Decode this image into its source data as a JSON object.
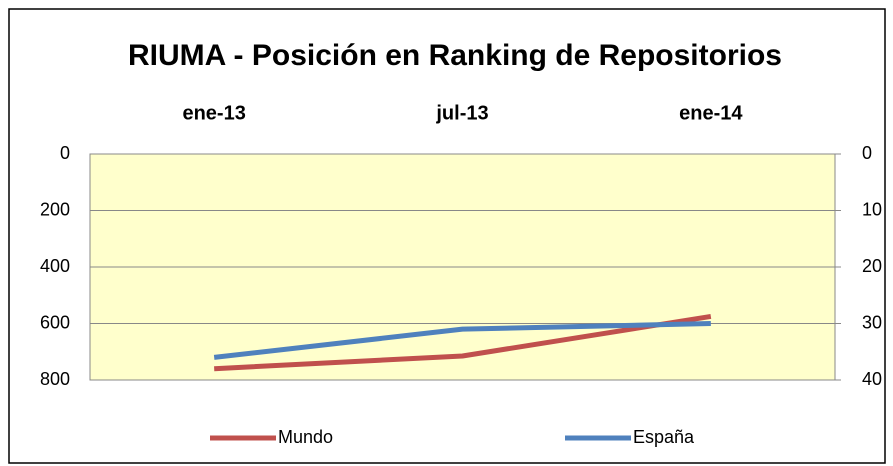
{
  "chart_data": {
    "type": "line",
    "title": "RIUMA - Posición en Ranking de Repositorios",
    "categories": [
      "ene-13",
      "jul-13",
      "ene-14"
    ],
    "series": [
      {
        "name": "Mundo",
        "color": "#c0504d",
        "values": [
          760,
          715,
          575
        ]
      },
      {
        "name": "España",
        "color": "#4f81bd",
        "axis": "y2",
        "values": [
          36,
          31,
          30
        ]
      }
    ],
    "ylim": [
      0,
      800
    ],
    "yticks": [
      0,
      200,
      400,
      600,
      800
    ],
    "y2lim": [
      0,
      40
    ],
    "y2ticks": [
      0,
      10,
      20,
      30,
      40
    ],
    "y_inverted": true,
    "grid": true,
    "x_axis_position": "top",
    "plot_background": "#ffffcc",
    "legend": "bottom"
  }
}
